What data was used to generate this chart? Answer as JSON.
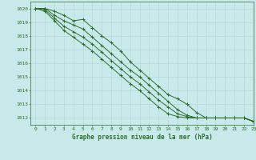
{
  "title": "Graphe pression niveau de la mer (hPa)",
  "background_color": "#c8eaea",
  "grid_color": "#b0d4d4",
  "line_color": "#2d6e2d",
  "xlim": [
    -0.5,
    23
  ],
  "ylim": [
    1011.5,
    1020.5
  ],
  "yticks": [
    1012,
    1013,
    1014,
    1015,
    1016,
    1017,
    1018,
    1019,
    1020
  ],
  "xticks": [
    0,
    1,
    2,
    3,
    4,
    5,
    6,
    7,
    8,
    9,
    10,
    11,
    12,
    13,
    14,
    15,
    16,
    17,
    18,
    19,
    20,
    21,
    22,
    23
  ],
  "series": [
    [
      1020.0,
      1020.0,
      1019.8,
      1019.5,
      1019.1,
      1019.2,
      1018.6,
      1018.0,
      1017.5,
      1016.9,
      1016.1,
      1015.5,
      1014.9,
      1014.3,
      1013.7,
      1013.4,
      1013.0,
      1012.4,
      1012.0,
      1012.0,
      1012.0,
      1012.0,
      1012.0,
      1011.75
    ],
    [
      1020.0,
      1020.0,
      1019.5,
      1019.1,
      1018.8,
      1018.5,
      1017.9,
      1017.3,
      1016.7,
      1016.1,
      1015.5,
      1015.0,
      1014.4,
      1013.8,
      1013.2,
      1012.6,
      1012.2,
      1012.0,
      1012.0,
      1012.0,
      1012.0,
      1012.0,
      1012.0,
      1011.75
    ],
    [
      1020.0,
      1019.9,
      1019.3,
      1018.7,
      1018.3,
      1017.9,
      1017.4,
      1016.8,
      1016.2,
      1015.6,
      1015.0,
      1014.5,
      1013.9,
      1013.3,
      1012.8,
      1012.3,
      1012.1,
      1012.0,
      1012.0,
      1012.0,
      1012.0,
      1012.0,
      1012.0,
      1011.75
    ],
    [
      1020.0,
      1019.8,
      1019.1,
      1018.4,
      1017.9,
      1017.4,
      1016.9,
      1016.3,
      1015.7,
      1015.1,
      1014.5,
      1014.0,
      1013.4,
      1012.8,
      1012.3,
      1012.1,
      1012.0,
      1012.0,
      1012.0,
      1012.0,
      1012.0,
      1012.0,
      1012.0,
      1011.75
    ]
  ]
}
